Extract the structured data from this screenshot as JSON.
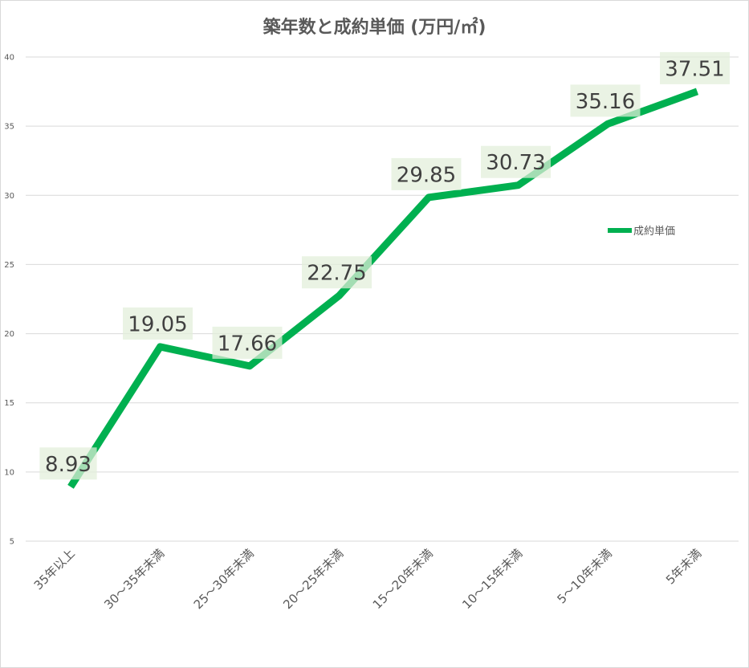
{
  "chart_data": {
    "type": "line",
    "title": "築年数と成約単価 (万円/㎡)",
    "categories": [
      "35年以上",
      "30～35年未満",
      "25～30年未満",
      "20～25年未満",
      "15～20年未満",
      "10～15年未満",
      "5～10年未満",
      "5年未満"
    ],
    "series": [
      {
        "name": "成約単価",
        "values": [
          8.93,
          19.05,
          17.66,
          22.75,
          29.85,
          30.73,
          35.16,
          37.51
        ],
        "color": "#00B050"
      }
    ],
    "ylim": [
      5,
      40
    ],
    "yticks": [
      5,
      10,
      15,
      20,
      25,
      30,
      35,
      40
    ],
    "grid": true,
    "legend": "right",
    "label_bg_color": "#E2EFDA"
  }
}
